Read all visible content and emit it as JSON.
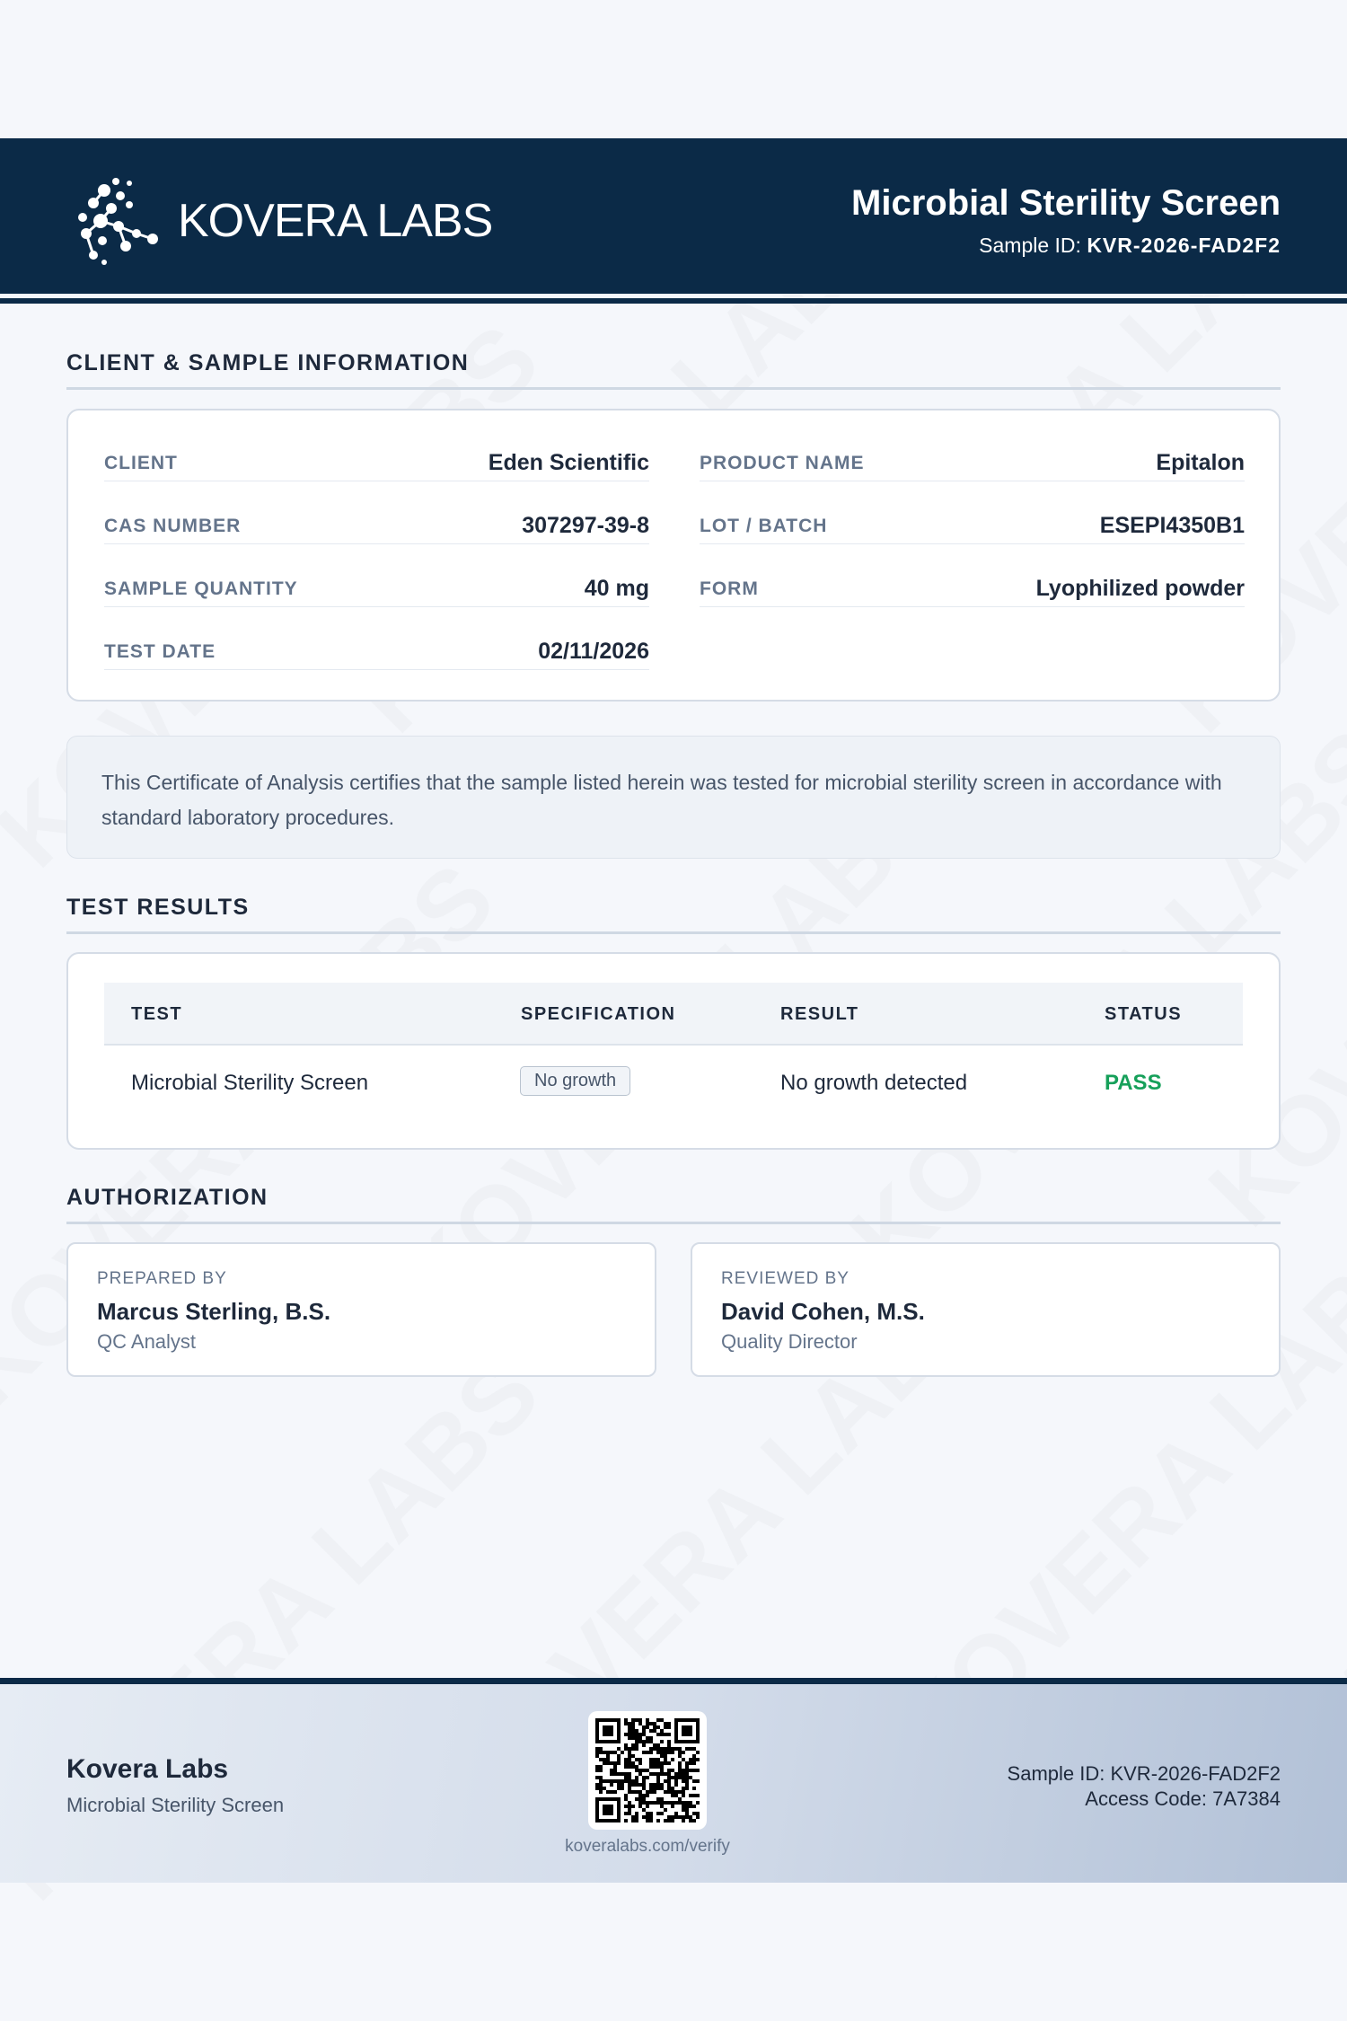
{
  "header": {
    "logo_text": "KOVERA LABS",
    "title": "Microbial Sterility Screen",
    "sample_id_label": "Sample ID:",
    "sample_id": "KVR-2026-FAD2F2"
  },
  "watermark": "KOVERA LABS",
  "client_section": {
    "title": "CLIENT & SAMPLE INFORMATION",
    "left": [
      {
        "label": "CLIENT",
        "value": "Eden Scientific"
      },
      {
        "label": "CAS NUMBER",
        "value": "307297-39-8"
      },
      {
        "label": "SAMPLE QUANTITY",
        "value": "40 mg"
      },
      {
        "label": "TEST DATE",
        "value": "02/11/2026"
      }
    ],
    "right": [
      {
        "label": "PRODUCT NAME",
        "value": "Epitalon"
      },
      {
        "label": "LOT / BATCH",
        "value": "ESEPI4350B1"
      },
      {
        "label": "FORM",
        "value": "Lyophilized powder"
      }
    ]
  },
  "note": "This Certificate of Analysis certifies that the sample listed herein was tested for microbial sterility screen in accordance with standard laboratory procedures.",
  "results": {
    "title": "TEST RESULTS",
    "columns": [
      "TEST",
      "SPECIFICATION",
      "RESULT",
      "STATUS"
    ],
    "rows": [
      {
        "test": "Microbial Sterility Screen",
        "specification": "No growth",
        "result": "No growth detected",
        "status": "PASS"
      }
    ],
    "status_color": "#16a05a"
  },
  "authorization": {
    "title": "AUTHORIZATION",
    "prepared": {
      "label": "PREPARED BY",
      "name": "Marcus Sterling, B.S.",
      "role": "QC Analyst"
    },
    "reviewed": {
      "label": "REVIEWED BY",
      "name": "David Cohen, M.S.",
      "role": "Quality Director"
    }
  },
  "footer": {
    "company": "Kovera Labs",
    "subtitle": "Microbial Sterility Screen",
    "verify_url": "koveralabs.com/verify",
    "sample_id": "Sample ID: KVR-2026-FAD2F2",
    "access_code": "Access Code: 7A7384"
  },
  "colors": {
    "navy": "#0b2a47",
    "pass": "#16a05a"
  }
}
